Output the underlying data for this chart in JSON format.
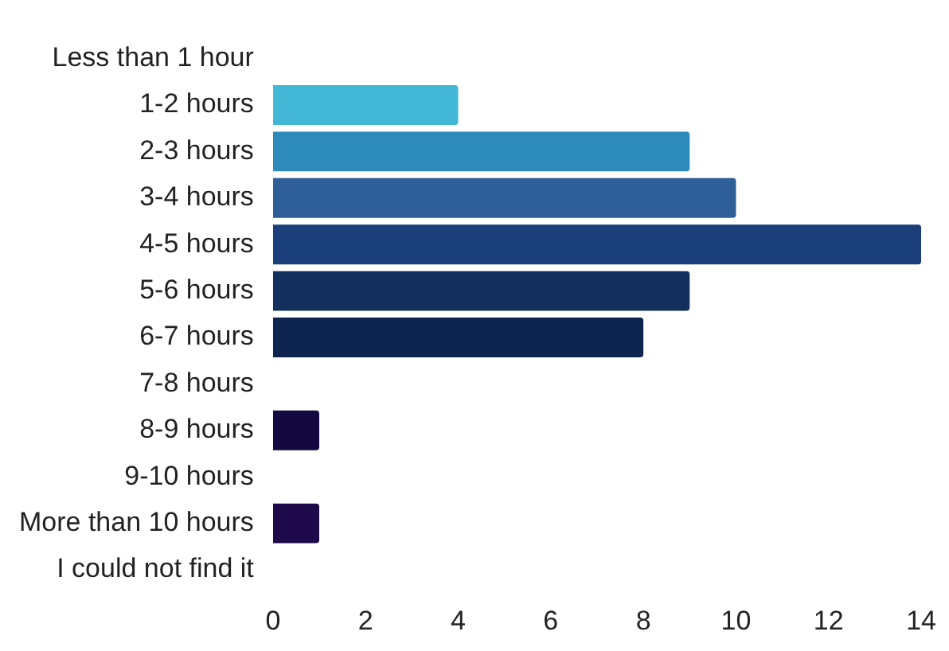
{
  "chart_data": {
    "type": "bar",
    "orientation": "horizontal",
    "categories": [
      "Less than 1 hour",
      "1-2 hours",
      "2-3 hours",
      "3-4 hours",
      "4-5 hours",
      "5-6 hours",
      "6-7 hours",
      "7-8 hours",
      "8-9 hours",
      "9-10 hours",
      "More than 10 hours",
      "I could not find it"
    ],
    "values": [
      0,
      4,
      9,
      10,
      14,
      9,
      8,
      0,
      1,
      0,
      1,
      0
    ],
    "colors": [
      "#42b8d6",
      "#42b8d6",
      "#2d8bba",
      "#2f5f98",
      "#1a3f7a",
      "#132f5e",
      "#0e2550",
      "#0e2550",
      "#13083f",
      "#13083f",
      "#1e0a4a",
      "#1e0a4a"
    ],
    "xlim": [
      0,
      14
    ],
    "xticks": [
      0,
      2,
      4,
      6,
      8,
      10,
      12,
      14
    ],
    "grid": false,
    "legend": false
  }
}
